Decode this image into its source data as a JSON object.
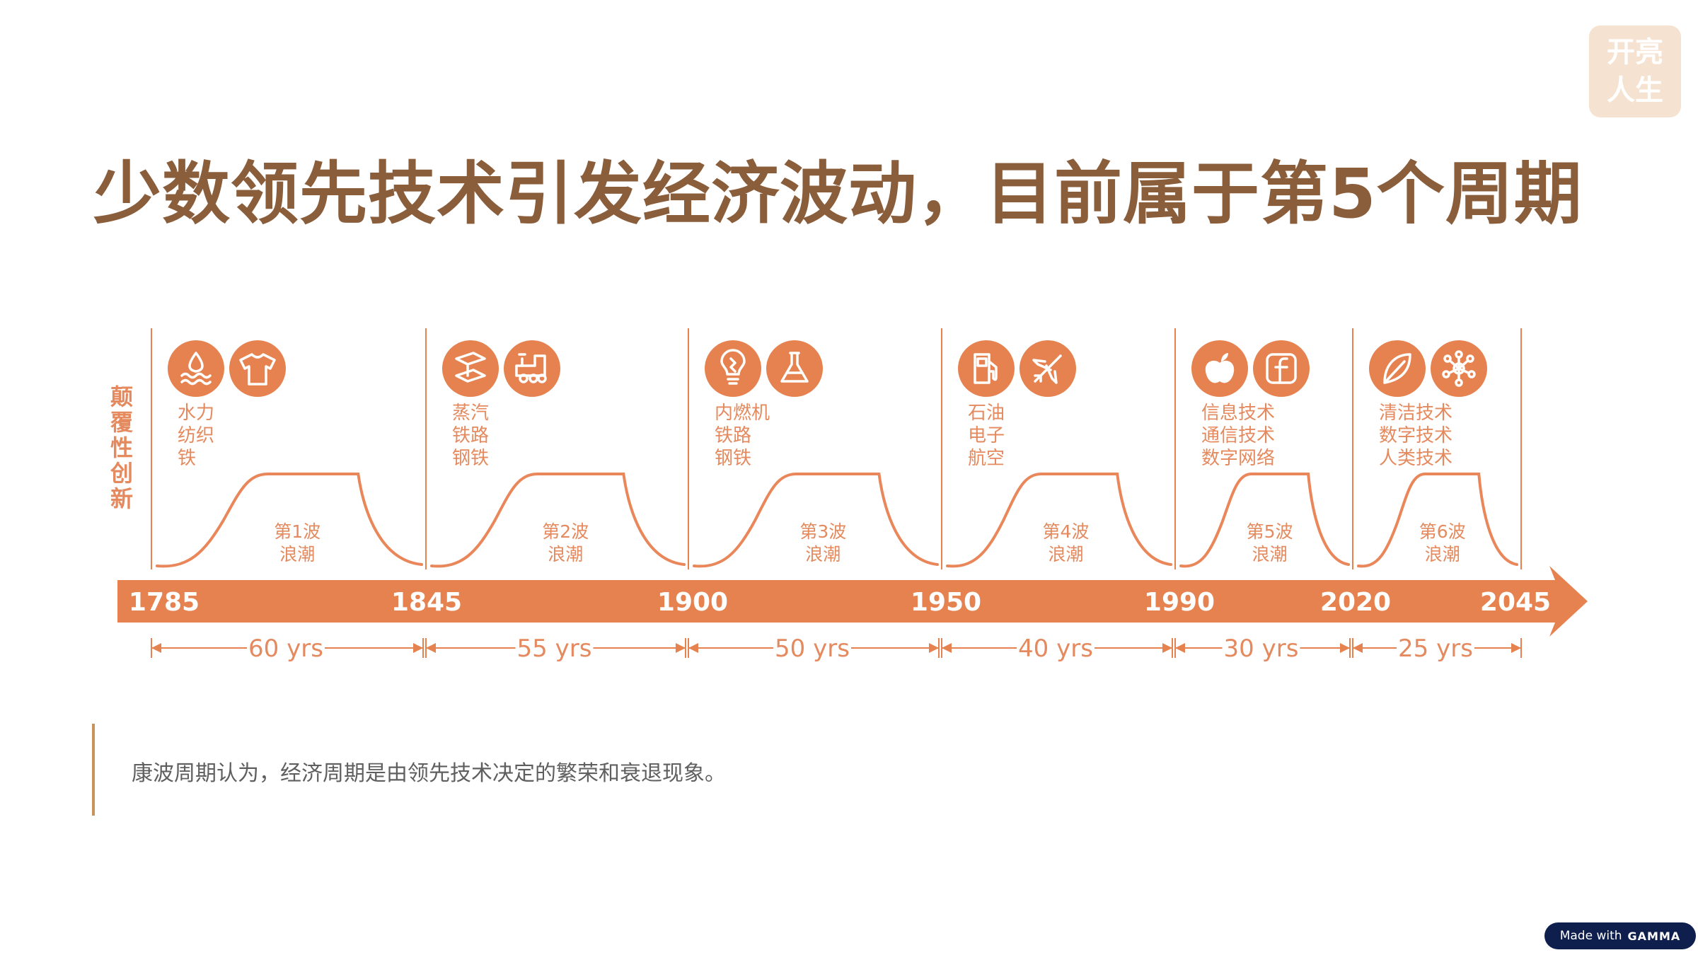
{
  "logo": {
    "line1": "开亮",
    "line2": "人生"
  },
  "title": "少数领先技术引发经济波动，目前属于第5个周期",
  "y_axis_label": "颠覆性创新",
  "colors": {
    "accent": "#e5824f",
    "curve": "#e9875a",
    "label": "#e48a5e",
    "title": "#8a5d3b",
    "text": "#5f5f5f",
    "quote_bar": "#c8935a",
    "badge_bg": "#f6e2d0"
  },
  "timeline": {
    "years": [
      "1785",
      "1845",
      "1900",
      "1950",
      "1990",
      "2020",
      "2045"
    ],
    "durations": [
      "60 yrs",
      "55 yrs",
      "50 yrs",
      "40 yrs",
      "30 yrs",
      "25 yrs"
    ]
  },
  "waves": [
    {
      "wave_label": [
        "第1波",
        "浪潮"
      ],
      "technologies": [
        "水力",
        "纺织",
        "铁"
      ],
      "icons": [
        "water-drop-icon",
        "t-shirt-icon"
      ]
    },
    {
      "wave_label": [
        "第2波",
        "浪潮"
      ],
      "technologies": [
        "蒸汽",
        "铁路",
        "钢铁"
      ],
      "icons": [
        "steel-beam-icon",
        "locomotive-icon"
      ]
    },
    {
      "wave_label": [
        "第3波",
        "浪潮"
      ],
      "technologies": [
        "内燃机",
        "铁路",
        "钢铁"
      ],
      "icons": [
        "light-bulb-icon",
        "flask-icon"
      ]
    },
    {
      "wave_label": [
        "第4波",
        "浪潮"
      ],
      "technologies": [
        "石油",
        "电子",
        "航空"
      ],
      "icons": [
        "fuel-pump-icon",
        "airplane-icon"
      ]
    },
    {
      "wave_label": [
        "第5波",
        "浪潮"
      ],
      "technologies": [
        "信息技术",
        "通信技术",
        "数字网络"
      ],
      "icons": [
        "apple-icon",
        "facebook-icon"
      ]
    },
    {
      "wave_label": [
        "第6波",
        "浪潮"
      ],
      "technologies": [
        "清洁技术",
        "数字技术",
        "人类技术"
      ],
      "icons": [
        "leaf-icon",
        "network-icon"
      ]
    }
  ],
  "quote": "康波周期认为，经济周期是由领先技术决定的繁荣和衰退现象。",
  "footer": {
    "made_with": "Made with",
    "brand": "GAMMA"
  }
}
